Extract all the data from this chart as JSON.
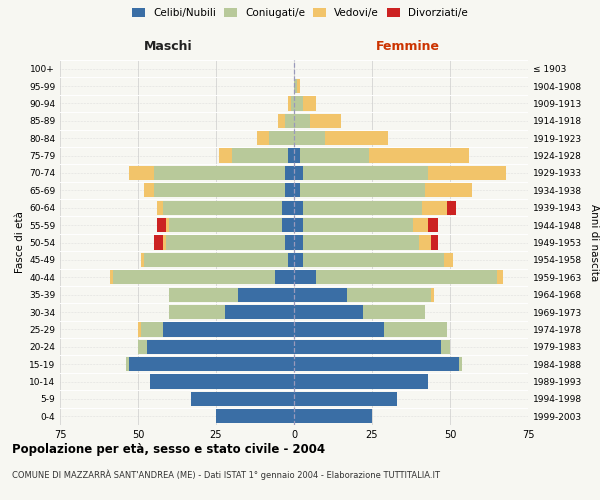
{
  "age_groups": [
    "0-4",
    "5-9",
    "10-14",
    "15-19",
    "20-24",
    "25-29",
    "30-34",
    "35-39",
    "40-44",
    "45-49",
    "50-54",
    "55-59",
    "60-64",
    "65-69",
    "70-74",
    "75-79",
    "80-84",
    "85-89",
    "90-94",
    "95-99",
    "100+"
  ],
  "birth_years": [
    "1999-2003",
    "1994-1998",
    "1989-1993",
    "1984-1988",
    "1979-1983",
    "1974-1978",
    "1969-1973",
    "1964-1968",
    "1959-1963",
    "1954-1958",
    "1949-1953",
    "1944-1948",
    "1939-1943",
    "1934-1938",
    "1929-1933",
    "1924-1928",
    "1919-1923",
    "1914-1918",
    "1909-1913",
    "1904-1908",
    "≤ 1903"
  ],
  "colors": {
    "celibi": "#3a6ea5",
    "coniugati": "#b8c99a",
    "vedovi": "#f2c46a",
    "divorziati": "#cc2222"
  },
  "maschi": {
    "celibi": [
      25,
      33,
      46,
      53,
      47,
      42,
      22,
      18,
      6,
      2,
      3,
      4,
      4,
      3,
      3,
      2,
      0,
      0,
      0,
      0,
      0
    ],
    "coniugati": [
      0,
      0,
      0,
      1,
      3,
      7,
      18,
      22,
      52,
      46,
      38,
      36,
      38,
      42,
      42,
      18,
      8,
      3,
      1,
      0,
      0
    ],
    "vedovi": [
      0,
      0,
      0,
      0,
      0,
      1,
      0,
      0,
      1,
      1,
      1,
      1,
      2,
      3,
      8,
      4,
      4,
      2,
      1,
      0,
      0
    ],
    "divorziati": [
      0,
      0,
      0,
      0,
      0,
      0,
      0,
      0,
      0,
      0,
      3,
      3,
      0,
      0,
      0,
      0,
      0,
      0,
      0,
      0,
      0
    ]
  },
  "femmine": {
    "nubili": [
      25,
      33,
      43,
      53,
      47,
      29,
      22,
      17,
      7,
      3,
      3,
      3,
      3,
      2,
      3,
      2,
      0,
      0,
      0,
      0,
      0
    ],
    "coniugate": [
      0,
      0,
      0,
      1,
      3,
      20,
      20,
      27,
      58,
      45,
      37,
      35,
      38,
      40,
      40,
      22,
      10,
      5,
      3,
      1,
      0
    ],
    "vedove": [
      0,
      0,
      0,
      0,
      0,
      0,
      0,
      1,
      2,
      3,
      4,
      5,
      8,
      15,
      25,
      32,
      20,
      10,
      4,
      1,
      0
    ],
    "divorziate": [
      0,
      0,
      0,
      0,
      0,
      0,
      0,
      0,
      0,
      0,
      2,
      3,
      3,
      0,
      0,
      0,
      0,
      0,
      0,
      0,
      0
    ]
  },
  "title": "Popolazione per età, sesso e stato civile - 2004",
  "subtitle": "COMUNE DI MAZZARRÀ SANT'ANDREA (ME) - Dati ISTAT 1° gennaio 2004 - Elaborazione TUTTITALIA.IT",
  "xlabel_left": "Maschi",
  "xlabel_right": "Femmine",
  "ylabel_left": "Fasce di età",
  "ylabel_right": "Anni di nascita",
  "xlim": 75,
  "legend_labels": [
    "Celibi/Nubili",
    "Coniugati/e",
    "Vedovi/e",
    "Divorziati/e"
  ],
  "background_color": "#f7f7f2"
}
